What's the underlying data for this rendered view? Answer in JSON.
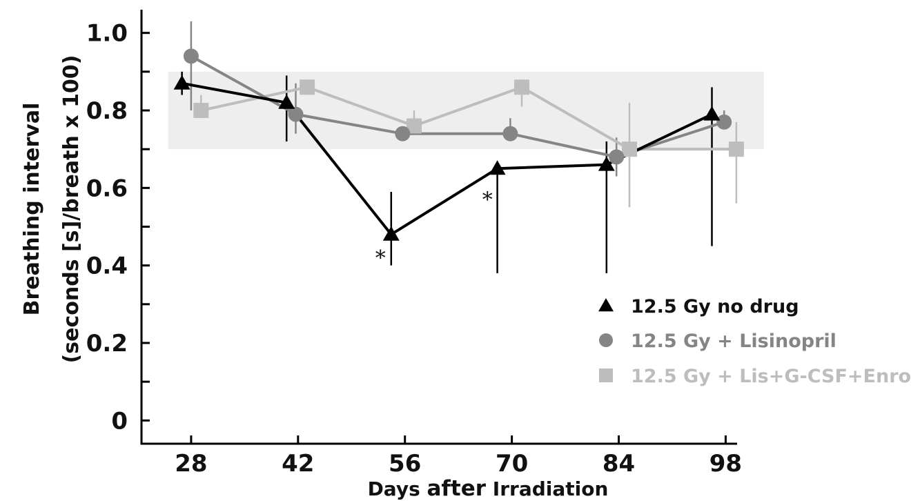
{
  "chart_data": {
    "type": "line",
    "xlabel": {
      "part1": "Days ",
      "part2": "after",
      "part3": " Irradiation"
    },
    "ylabel": {
      "line1": "Breathing interval",
      "line2": "(seconds [s]/breath x 100)"
    },
    "x_ticks": [
      "28",
      "42",
      "56",
      "70",
      "84",
      "98"
    ],
    "y_ticks": [
      "0",
      "0.2",
      "0.4",
      "0.6",
      "0.8",
      "1.0"
    ],
    "xlim": [
      21.5,
      99.5
    ],
    "ylim": [
      -0.06,
      1.06
    ],
    "grid": false,
    "normal_band": {
      "y_min": 0.7,
      "y_max": 0.9,
      "x_min": 25,
      "x_max": 103,
      "color": "#eeeeee"
    },
    "legend_position": "bottom-right",
    "series": [
      {
        "name": "12.5 Gy no drug",
        "marker": "triangle",
        "color": "#000000",
        "points": [
          {
            "x": 26.8,
            "y": 0.87,
            "err_low": 0.84,
            "err_high": 0.9
          },
          {
            "x": 40.5,
            "y": 0.82,
            "err_low": 0.72,
            "err_high": 0.89
          },
          {
            "x": 54.2,
            "y": 0.48,
            "err_low": 0.4,
            "err_high": 0.59
          },
          {
            "x": 68.1,
            "y": 0.65,
            "err_low": 0.38,
            "err_high": 0.65
          },
          {
            "x": 82.4,
            "y": 0.66,
            "err_low": 0.38,
            "err_high": 0.72
          },
          {
            "x": 96.2,
            "y": 0.79,
            "err_low": 0.45,
            "err_high": 0.86
          }
        ]
      },
      {
        "name": "12.5 Gy + Lisinopril",
        "marker": "circle",
        "color": "#858585",
        "points": [
          {
            "x": 28.0,
            "y": 0.94,
            "err_low": 0.8,
            "err_high": 1.03
          },
          {
            "x": 41.7,
            "y": 0.79,
            "err_low": 0.74,
            "err_high": 0.87
          },
          {
            "x": 55.7,
            "y": 0.74,
            "err_low": 0.74,
            "err_high": 0.74
          },
          {
            "x": 69.8,
            "y": 0.74,
            "err_low": 0.74,
            "err_high": 0.78
          },
          {
            "x": 83.7,
            "y": 0.68,
            "err_low": 0.63,
            "err_high": 0.73
          },
          {
            "x": 97.8,
            "y": 0.77,
            "err_low": 0.77,
            "err_high": 0.8
          }
        ]
      },
      {
        "name": "12.5 Gy + Lis+G-CSF+Enro",
        "marker": "square",
        "color": "#bdbdbd",
        "points": [
          {
            "x": 29.3,
            "y": 0.8,
            "err_low": 0.8,
            "err_high": 0.84
          },
          {
            "x": 43.2,
            "y": 0.86,
            "err_low": 0.86,
            "err_high": 0.88
          },
          {
            "x": 57.2,
            "y": 0.76,
            "err_low": 0.76,
            "err_high": 0.8
          },
          {
            "x": 71.3,
            "y": 0.86,
            "err_low": 0.81,
            "err_high": 0.86
          },
          {
            "x": 85.4,
            "y": 0.7,
            "err_low": 0.55,
            "err_high": 0.82
          },
          {
            "x": 99.4,
            "y": 0.7,
            "err_low": 0.56,
            "err_high": 0.77
          }
        ]
      }
    ],
    "annotations": [
      {
        "text": "*",
        "x": 52.8,
        "y": 0.43
      },
      {
        "text": "*",
        "x": 66.8,
        "y": 0.58
      }
    ]
  }
}
